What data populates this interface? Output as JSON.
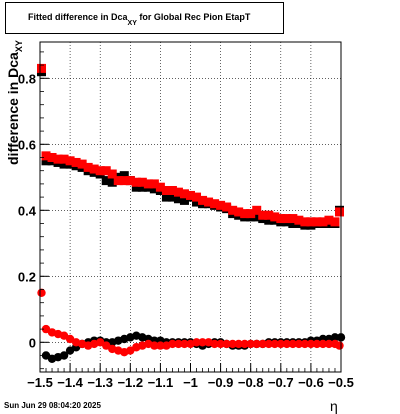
{
  "chart_data": {
    "type": "scatter",
    "title": "Fitted difference in Dca",
    "title_subscript": "XY",
    "title_suffix": " for Global Rec Pion EtapT",
    "ylabel": "difference in Dca",
    "ylabel_subscript": "XY",
    "xlabel": "η",
    "xlim": [
      -1.5,
      -0.5
    ],
    "ylim": [
      -0.09,
      0.91
    ],
    "grid": true,
    "legend": "none",
    "x_ticks": [
      -1.5,
      -1.4,
      -1.3,
      -1.2,
      -1.1,
      -1.0,
      -0.9,
      -0.8,
      -0.7,
      -0.6,
      -0.5
    ],
    "x_tick_labels": [
      "−1.5",
      "−1.4",
      "−1.3",
      "−1.2",
      "−1.1",
      "−1",
      "−0.9",
      "−0.8",
      "−0.7",
      "−0.6",
      "−0.5"
    ],
    "y_ticks": [
      0,
      0.2,
      0.4,
      0.6,
      0.8
    ],
    "y_tick_labels": [
      "0",
      "0.2",
      "0.4",
      "0.6",
      "0.8"
    ],
    "series": [
      {
        "color": "#000000",
        "marker": "square",
        "x": [
          -1.495,
          -1.48,
          -1.46,
          -1.44,
          -1.42,
          -1.4,
          -1.38,
          -1.36,
          -1.34,
          -1.32,
          -1.3,
          -1.28,
          -1.26,
          -1.24,
          -1.22,
          -1.2,
          -1.18,
          -1.16,
          -1.14,
          -1.12,
          -1.1,
          -1.08,
          -1.06,
          -1.04,
          -1.02,
          -1.0,
          -0.98,
          -0.96,
          -0.94,
          -0.92,
          -0.9,
          -0.88,
          -0.86,
          -0.84,
          -0.82,
          -0.8,
          -0.78,
          -0.76,
          -0.74,
          -0.72,
          -0.7,
          -0.68,
          -0.66,
          -0.64,
          -0.62,
          -0.6,
          -0.58,
          -0.56,
          -0.54,
          -0.52,
          -0.505
        ],
        "y": [
          0.82,
          0.55,
          0.55,
          0.545,
          0.54,
          0.54,
          0.535,
          0.53,
          0.52,
          0.515,
          0.51,
          0.49,
          0.485,
          0.5,
          0.505,
          0.49,
          0.47,
          0.47,
          0.47,
          0.465,
          0.46,
          0.44,
          0.44,
          0.435,
          0.43,
          0.44,
          0.425,
          0.42,
          0.42,
          0.415,
          0.41,
          0.405,
          0.39,
          0.385,
          0.38,
          0.38,
          0.38,
          0.375,
          0.37,
          0.37,
          0.365,
          0.365,
          0.36,
          0.36,
          0.355,
          0.355,
          0.36,
          0.36,
          0.36,
          0.36,
          0.4
        ]
      },
      {
        "color": "#ff0000",
        "marker": "square",
        "x": [
          -1.495,
          -1.48,
          -1.46,
          -1.44,
          -1.42,
          -1.4,
          -1.38,
          -1.36,
          -1.34,
          -1.32,
          -1.3,
          -1.28,
          -1.26,
          -1.24,
          -1.22,
          -1.2,
          -1.18,
          -1.16,
          -1.14,
          -1.12,
          -1.1,
          -1.08,
          -1.06,
          -1.04,
          -1.02,
          -1.0,
          -0.98,
          -0.96,
          -0.94,
          -0.92,
          -0.9,
          -0.88,
          -0.86,
          -0.84,
          -0.82,
          -0.8,
          -0.78,
          -0.76,
          -0.74,
          -0.72,
          -0.7,
          -0.68,
          -0.66,
          -0.64,
          -0.62,
          -0.6,
          -0.58,
          -0.56,
          -0.54,
          -0.52,
          -0.505
        ],
        "y": [
          0.83,
          0.565,
          0.56,
          0.555,
          0.555,
          0.55,
          0.545,
          0.54,
          0.53,
          0.525,
          0.52,
          0.52,
          0.51,
          0.49,
          0.49,
          0.49,
          0.485,
          0.485,
          0.48,
          0.48,
          0.47,
          0.46,
          0.46,
          0.455,
          0.45,
          0.445,
          0.44,
          0.43,
          0.425,
          0.42,
          0.415,
          0.41,
          0.4,
          0.395,
          0.39,
          0.39,
          0.4,
          0.385,
          0.385,
          0.38,
          0.375,
          0.375,
          0.375,
          0.37,
          0.365,
          0.365,
          0.365,
          0.365,
          0.37,
          0.365,
          0.395
        ]
      },
      {
        "color": "#000000",
        "marker": "circle",
        "x": [
          -1.48,
          -1.46,
          -1.44,
          -1.42,
          -1.4,
          -1.38,
          -1.36,
          -1.34,
          -1.32,
          -1.3,
          -1.28,
          -1.26,
          -1.24,
          -1.22,
          -1.2,
          -1.18,
          -1.16,
          -1.14,
          -1.12,
          -1.1,
          -1.08,
          -1.06,
          -1.04,
          -1.02,
          -1.0,
          -0.98,
          -0.96,
          -0.94,
          -0.92,
          -0.9,
          -0.88,
          -0.86,
          -0.84,
          -0.82,
          -0.8,
          -0.78,
          -0.76,
          -0.74,
          -0.72,
          -0.7,
          -0.68,
          -0.66,
          -0.64,
          -0.62,
          -0.6,
          -0.58,
          -0.56,
          -0.54,
          -0.52,
          -0.5
        ],
        "y": [
          -0.04,
          -0.05,
          -0.045,
          -0.04,
          -0.025,
          -0.015,
          -0.005,
          0.0,
          0.005,
          0.005,
          0.0,
          0.0,
          0.005,
          0.01,
          0.015,
          0.02,
          0.015,
          0.01,
          0.005,
          0.005,
          0.0,
          0.0,
          0.0,
          0.0,
          0.0,
          -0.005,
          -0.01,
          -0.005,
          0.0,
          0.0,
          -0.005,
          -0.01,
          -0.01,
          -0.01,
          -0.005,
          -0.005,
          -0.005,
          0.0,
          0.0,
          0.0,
          0.0,
          0.0,
          0.0,
          0.0,
          0.005,
          0.005,
          0.01,
          0.01,
          0.015,
          0.015
        ]
      },
      {
        "color": "#ff0000",
        "marker": "circle",
        "x": [
          -1.495,
          -1.48,
          -1.46,
          -1.44,
          -1.42,
          -1.4,
          -1.38,
          -1.36,
          -1.34,
          -1.32,
          -1.3,
          -1.28,
          -1.26,
          -1.24,
          -1.22,
          -1.2,
          -1.18,
          -1.16,
          -1.14,
          -1.12,
          -1.1,
          -1.08,
          -1.06,
          -1.04,
          -1.02,
          -1.0,
          -0.98,
          -0.96,
          -0.94,
          -0.92,
          -0.9,
          -0.88,
          -0.86,
          -0.84,
          -0.82,
          -0.8,
          -0.78,
          -0.76,
          -0.74,
          -0.72,
          -0.7,
          -0.68,
          -0.66,
          -0.64,
          -0.62,
          -0.6,
          -0.58,
          -0.56,
          -0.54,
          -0.52,
          -0.505
        ],
        "y": [
          0.15,
          0.04,
          0.03,
          0.025,
          0.02,
          0.01,
          0.0,
          -0.005,
          -0.01,
          -0.005,
          0.0,
          -0.01,
          -0.02,
          -0.025,
          -0.03,
          -0.025,
          -0.015,
          -0.01,
          -0.005,
          -0.01,
          -0.01,
          -0.01,
          -0.005,
          -0.005,
          -0.005,
          -0.005,
          0.0,
          0.0,
          0.0,
          -0.005,
          -0.005,
          -0.005,
          -0.005,
          -0.005,
          -0.005,
          -0.005,
          -0.005,
          -0.005,
          -0.005,
          -0.005,
          -0.005,
          -0.005,
          -0.005,
          -0.005,
          -0.005,
          -0.005,
          -0.005,
          -0.005,
          -0.005,
          -0.005,
          -0.01
        ]
      }
    ]
  },
  "footer": {
    "datestamp": "Sun Jun 29 08:04:20 2025"
  }
}
